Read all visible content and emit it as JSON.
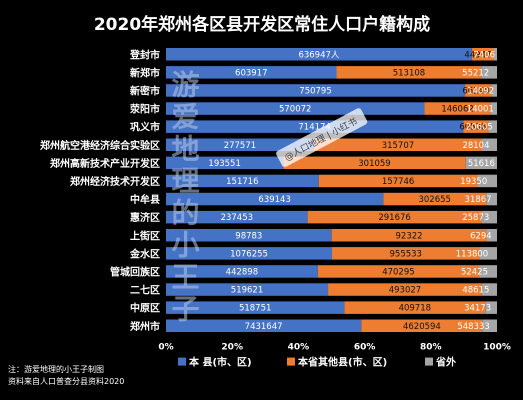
{
  "chart_data": {
    "type": "bar",
    "orientation": "horizontal",
    "stacked": "percent",
    "title": "2020年郑州各区县开发区常住人口户籍构成",
    "categories": [
      "登封市",
      "新郑市",
      "新密市",
      "荥阳市",
      "巩义市",
      "郑州航空港经济综合实验区",
      "郑州高新技术产业开发区",
      "郑州经济技术开发区",
      "中牟县",
      "惠济区",
      "上街区",
      "金水区",
      "管城回族区",
      "二七区",
      "中原区",
      "郑州市"
    ],
    "series": [
      {
        "name": "本 县(市、区)",
        "color": "#4472C4",
        "values": [
          636947,
          603917,
          750795,
          570072,
          714174,
          277571,
          193551,
          151716,
          639143,
          237453,
          98783,
          1076255,
          442898,
          519621,
          518751,
          7431647
        ]
      },
      {
        "name": "本省其他县(市、区)",
        "color": "#ED7D31",
        "values": [
          44947,
          513108,
          66149,
          146062,
          60538,
          315707,
          301059,
          157746,
          302655,
          291676,
          92322,
          955533,
          470295,
          493027,
          409718,
          4620594
        ]
      },
      {
        "name": "省外",
        "color": "#A5A5A5",
        "values": [
          7406,
          55212,
          14092,
          14001,
          20605,
          28104,
          51616,
          19350,
          31867,
          25873,
          6294,
          113800,
          52425,
          48615,
          34173,
          548333
        ]
      }
    ],
    "data_labels": [
      [
        "636947人",
        "44947",
        "7406"
      ],
      [
        "603917",
        "513108",
        "55212"
      ],
      [
        "750795",
        "66149",
        "14092"
      ],
      [
        "570072",
        "146062",
        "14001"
      ],
      [
        "714174",
        "60538",
        "20605"
      ],
      [
        "277571",
        "315707",
        "28104"
      ],
      [
        "193551",
        "301059",
        "51616"
      ],
      [
        "151716",
        "157746",
        "19350"
      ],
      [
        "639143",
        "302655",
        "31867"
      ],
      [
        "237453",
        "291676",
        "25873"
      ],
      [
        "98783",
        "92322",
        "6294"
      ],
      [
        "1076255",
        "955533",
        "113800"
      ],
      [
        "442898",
        "470295",
        "52425"
      ],
      [
        "519621",
        "493027",
        "48615"
      ],
      [
        "518751",
        "409718",
        "34173"
      ],
      [
        "7431647",
        "4620594",
        "548333"
      ]
    ],
    "xticks": [
      "0%",
      "20%",
      "40%",
      "60%",
      "80%",
      "100%"
    ],
    "xlim": [
      0,
      100
    ],
    "grid": false,
    "legend_position": "bottom",
    "annotations": [
      "注：游爱地理的小王子制图",
      "资料来自人口普查分县资料2020"
    ]
  },
  "watermarks": {
    "vertical": "游爱地理的小王子",
    "badge": "@人口地理 | 小红书"
  }
}
